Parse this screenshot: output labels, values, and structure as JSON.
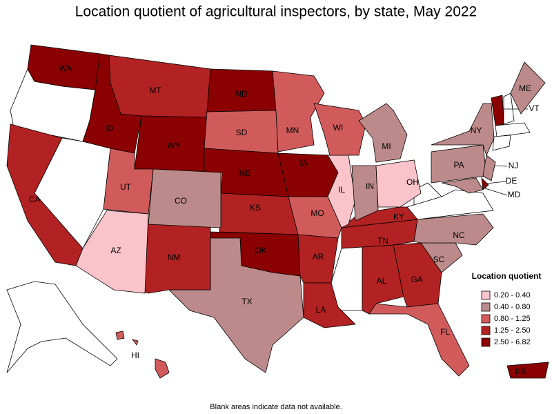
{
  "title": "Location quotient of agricultural inspectors, by state, May 2022",
  "legend": {
    "title": "Location quotient",
    "items": [
      {
        "label": "0.20 - 0.40",
        "color": "#fbc4cb"
      },
      {
        "label": "0.40 - 0.80",
        "color": "#bc8a8a"
      },
      {
        "label": "0.80 - 1.25",
        "color": "#d15b5b"
      },
      {
        "label": "1.25 - 2.50",
        "color": "#b22222"
      },
      {
        "label": "2.50 - 6.82",
        "color": "#8b0000"
      }
    ]
  },
  "states": [
    {
      "label": "WA",
      "color": "#8b0000"
    },
    {
      "label": "ID",
      "color": "#8b0000"
    },
    {
      "label": "MT",
      "color": "#b22222"
    },
    {
      "label": "WY",
      "color": "#8b0000"
    },
    {
      "label": "ND",
      "color": "#8b0000"
    },
    {
      "label": "SD",
      "color": "#d15b5b"
    },
    {
      "label": "NE",
      "color": "#8b0000"
    },
    {
      "label": "KS",
      "color": "#b22222"
    },
    {
      "label": "OK",
      "color": "#8b0000"
    },
    {
      "label": "TX",
      "color": "#bc8a8a"
    },
    {
      "label": "NM",
      "color": "#b22222"
    },
    {
      "label": "CO",
      "color": "#bc8a8a"
    },
    {
      "label": "AZ",
      "color": "#fbc4cb"
    },
    {
      "label": "UT",
      "color": "#d15b5b"
    },
    {
      "label": "CA",
      "color": "#b22222"
    },
    {
      "label": "MN",
      "color": "#d15b5b"
    },
    {
      "label": "IA",
      "color": "#8b0000"
    },
    {
      "label": "MO",
      "color": "#d15b5b"
    },
    {
      "label": "AR",
      "color": "#b22222"
    },
    {
      "label": "LA",
      "color": "#b22222"
    },
    {
      "label": "AL",
      "color": "#b22222"
    },
    {
      "label": "GA",
      "color": "#b22222"
    },
    {
      "label": "FL",
      "color": "#d15b5b"
    },
    {
      "label": "SC",
      "color": "#bc8a8a"
    },
    {
      "label": "NC",
      "color": "#bc8a8a"
    },
    {
      "label": "TN",
      "color": "#b22222"
    },
    {
      "label": "KY",
      "color": "#b22222"
    },
    {
      "label": "IL",
      "color": "#fbc4cb"
    },
    {
      "label": "IN",
      "color": "#bc8a8a"
    },
    {
      "label": "OH",
      "color": "#fbc4cb"
    },
    {
      "label": "WI",
      "color": "#d15b5b"
    },
    {
      "label": "MI",
      "color": "#bc8a8a"
    },
    {
      "label": "PA",
      "color": "#bc8a8a"
    },
    {
      "label": "NY",
      "color": "#bc8a8a"
    },
    {
      "label": "MD",
      "color": "#bc8a8a"
    },
    {
      "label": "DE",
      "color": "#8b0000"
    },
    {
      "label": "NJ",
      "color": "#bc8a8a"
    },
    {
      "label": "VT",
      "color": "#8b0000"
    },
    {
      "label": "ME",
      "color": "#bc8a8a"
    },
    {
      "label": "HI",
      "color": "#d15b5b"
    },
    {
      "label": "PR",
      "color": "#8b0000"
    }
  ],
  "footnote": "Blank areas indicate data not available."
}
